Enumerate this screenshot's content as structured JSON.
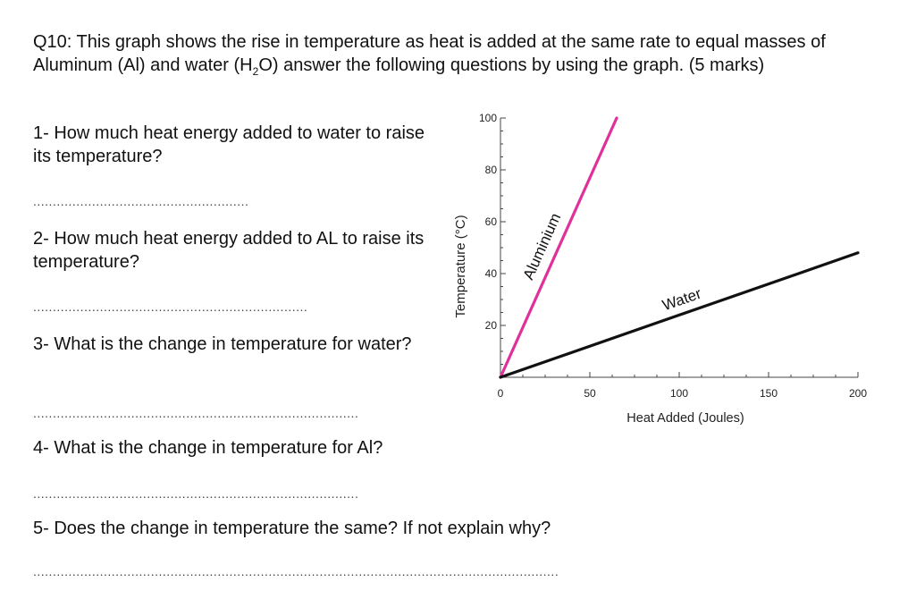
{
  "question": {
    "title_a": "Q10: This graph shows the rise in temperature as heat is added at the same rate to equal masses of Aluminum (Al) and water (H",
    "title_sub": "2",
    "title_b": "O) answer the following questions by using the graph. (5 marks)"
  },
  "items": [
    {
      "text": "1- How much heat energy added to water to raise its temperature?",
      "dots": "......................................................."
    },
    {
      "text": "2- How much heat energy added to AL to raise its temperature?",
      "dots": "......................................................................"
    },
    {
      "text": "3- What is the change in temperature for water?",
      "dots": "..................................................................................."
    },
    {
      "text": "4- What is the change in temperature for Al?",
      "dots": "..................................................................................."
    },
    {
      "text": "5- Does the change in temperature the same? If not explain why?",
      "dots": "......................................................................................................................................"
    }
  ],
  "chart_data": {
    "type": "line",
    "xlabel": "Heat Added (Joules)",
    "ylabel": "Temperature (°C)",
    "xlim": [
      0,
      200
    ],
    "ylim": [
      0,
      100
    ],
    "x_ticks": [
      "0",
      "50",
      "100",
      "150",
      "200"
    ],
    "y_ticks": [
      "20",
      "40",
      "60",
      "80",
      "100"
    ],
    "grid": false,
    "series": [
      {
        "name": "Aluminium",
        "color": "#e0309a",
        "x": [
          0,
          65
        ],
        "y": [
          0,
          100
        ]
      },
      {
        "name": "Water",
        "color": "#111111",
        "x": [
          0,
          200
        ],
        "y": [
          0,
          48
        ]
      }
    ]
  }
}
